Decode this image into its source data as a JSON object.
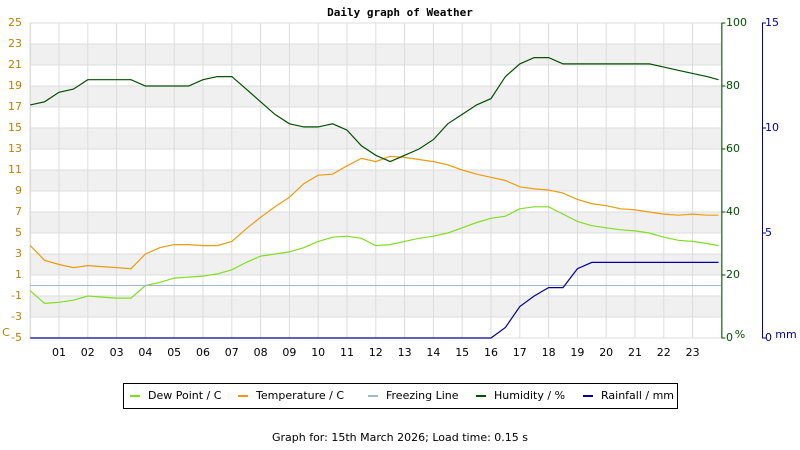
{
  "chart_data": {
    "type": "line",
    "title": "Daily graph of Weather",
    "footer": "Graph for: 15th March 2026; Load time: 0.15 s",
    "ylabel": "C",
    "y2label": "%",
    "y3label": "mm",
    "x": [
      0,
      0.5,
      1,
      1.5,
      2,
      2.5,
      3,
      3.5,
      4,
      4.5,
      5,
      5.5,
      6,
      6.5,
      7,
      7.5,
      8,
      8.5,
      9,
      9.5,
      10,
      10.5,
      11,
      11.5,
      12,
      12.5,
      13,
      13.5,
      14,
      14.5,
      15,
      15.5,
      16,
      16.5,
      17,
      17.5,
      18,
      18.5,
      19,
      19.5,
      20,
      20.5,
      21,
      21.5,
      22,
      22.5,
      23,
      23.5,
      23.9
    ],
    "xlim": [
      0,
      24
    ],
    "xticks": [
      {
        "value": 1,
        "label": "01"
      },
      {
        "value": 2,
        "label": "02"
      },
      {
        "value": 3,
        "label": "03"
      },
      {
        "value": 4,
        "label": "04"
      },
      {
        "value": 5,
        "label": "05"
      },
      {
        "value": 6,
        "label": "06"
      },
      {
        "value": 7,
        "label": "07"
      },
      {
        "value": 8,
        "label": "08"
      },
      {
        "value": 9,
        "label": "09"
      },
      {
        "value": 10,
        "label": "10"
      },
      {
        "value": 11,
        "label": "11"
      },
      {
        "value": 12,
        "label": "12"
      },
      {
        "value": 13,
        "label": "13"
      },
      {
        "value": 14,
        "label": "14"
      },
      {
        "value": 15,
        "label": "15"
      },
      {
        "value": 16,
        "label": "16"
      },
      {
        "value": 17,
        "label": "17"
      },
      {
        "value": 18,
        "label": "18"
      },
      {
        "value": 19,
        "label": "19"
      },
      {
        "value": 20,
        "label": "20"
      },
      {
        "value": 21,
        "label": "21"
      },
      {
        "value": 22,
        "label": "22"
      },
      {
        "value": 23,
        "label": "23"
      }
    ],
    "ylim": [
      -5,
      25
    ],
    "yticks": [
      -5,
      -3,
      -1,
      1,
      3,
      5,
      7,
      9,
      11,
      13,
      15,
      17,
      19,
      21,
      23,
      25
    ],
    "y2lim": [
      0,
      100
    ],
    "y2ticks": [
      0,
      20,
      40,
      60,
      80,
      100
    ],
    "y3lim": [
      0,
      15
    ],
    "y3ticks": [
      0,
      5,
      10,
      15
    ],
    "grid": true,
    "series": [
      {
        "name": "Dew Point / C",
        "color": "#7fdf1f",
        "axis": "y",
        "values": [
          -0.5,
          -1.7,
          -1.6,
          -1.4,
          -1.0,
          -1.1,
          -1.2,
          -1.2,
          0.0,
          0.3,
          0.7,
          0.8,
          0.9,
          1.1,
          1.5,
          2.2,
          2.8,
          3.0,
          3.2,
          3.6,
          4.2,
          4.6,
          4.7,
          4.5,
          3.8,
          3.9,
          4.2,
          4.5,
          4.7,
          5.0,
          5.5,
          6.0,
          6.4,
          6.6,
          7.3,
          7.5,
          7.5,
          6.8,
          6.1,
          5.7,
          5.5,
          5.3,
          5.2,
          5.0,
          4.6,
          4.3,
          4.2,
          4.0,
          3.8
        ]
      },
      {
        "name": "Temperature / C",
        "color": "#ef9a0f",
        "axis": "y",
        "values": [
          3.8,
          2.4,
          2.0,
          1.7,
          1.9,
          1.8,
          1.7,
          1.6,
          3.0,
          3.6,
          3.9,
          3.9,
          3.8,
          3.8,
          4.2,
          5.4,
          6.5,
          7.5,
          8.4,
          9.7,
          10.5,
          10.6,
          11.4,
          12.1,
          11.8,
          12.3,
          12.2,
          12.0,
          11.8,
          11.5,
          11.0,
          10.6,
          10.3,
          10.0,
          9.4,
          9.2,
          9.1,
          8.8,
          8.2,
          7.8,
          7.6,
          7.3,
          7.2,
          7.0,
          6.8,
          6.7,
          6.8,
          6.7,
          6.7
        ]
      },
      {
        "name": "Freezing Line",
        "color": "#9fb7cf",
        "axis": "y",
        "value": 0
      },
      {
        "name": "Humidity / %",
        "color": "#005000",
        "axis": "y2",
        "values": [
          74,
          75,
          78,
          79,
          82,
          82,
          82,
          82,
          80,
          80,
          80,
          80,
          82,
          83,
          83,
          79,
          75,
          71,
          68,
          67,
          67,
          68,
          66,
          61,
          58,
          56,
          58,
          60,
          63,
          68,
          71,
          74,
          76,
          83,
          87,
          89,
          89,
          87,
          87,
          87,
          87,
          87,
          87,
          87,
          86,
          85,
          84,
          83,
          82
        ]
      },
      {
        "name": "Rainfall / mm",
        "color": "#0000a0",
        "axis": "y3",
        "values": [
          0,
          0,
          0,
          0,
          0,
          0,
          0,
          0,
          0,
          0,
          0,
          0,
          0,
          0,
          0,
          0,
          0,
          0,
          0,
          0,
          0,
          0,
          0,
          0,
          0,
          0,
          0,
          0,
          0,
          0,
          0,
          0,
          0,
          0.5,
          1.5,
          2.0,
          2.4,
          2.4,
          3.3,
          3.6,
          3.6,
          3.6,
          3.6,
          3.6,
          3.6,
          3.6,
          3.6,
          3.6,
          3.6
        ]
      }
    ]
  }
}
